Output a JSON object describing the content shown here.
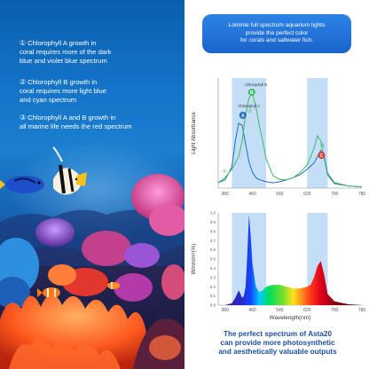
{
  "left_panel": {
    "items": [
      {
        "num": "①",
        "text_lines": [
          "Chlorophyll A growth in",
          "coral requires more of the dark",
          "blue and violet blue spectrum"
        ]
      },
      {
        "num": "②",
        "text_lines": [
          "Chlorophyll B growth in",
          "coral requires more light blue",
          "and cyan spectrum"
        ]
      },
      {
        "num": "③",
        "text_lines": [
          "Chlorophyll A and B growth in",
          "all marine life needs the red spectrum"
        ]
      }
    ]
  },
  "right_panel": {
    "header_lines": [
      "Lominie full spectrum aquarium lights",
      "provide the perfect color",
      "for corals and saltwater fish."
    ],
    "caption_lines": [
      "The perfect spectrum of Asta20",
      "can provide more photosynthetic",
      "and aesthetically valuable outputs"
    ]
  },
  "chart_data": [
    {
      "type": "line",
      "ylabel": "Light Absorbance",
      "x_ticks": [
        "380",
        "460",
        "540",
        "620",
        "700",
        "780"
      ],
      "xlim": [
        360,
        780
      ],
      "highlight_bands_nm": [
        [
          400,
          500
        ],
        [
          620,
          680
        ]
      ],
      "series": [
        {
          "name": "Chlorophyll A",
          "color": "#1f6fbf",
          "x": [
            360,
            380,
            400,
            410,
            420,
            430,
            440,
            450,
            460,
            470,
            480,
            500,
            520,
            540,
            560,
            580,
            600,
            620,
            640,
            650,
            660,
            670,
            680,
            700,
            740,
            780
          ],
          "y": [
            0.05,
            0.08,
            0.2,
            0.45,
            0.62,
            0.6,
            0.42,
            0.25,
            0.15,
            0.1,
            0.08,
            0.06,
            0.05,
            0.06,
            0.08,
            0.1,
            0.13,
            0.18,
            0.24,
            0.3,
            0.36,
            0.3,
            0.14,
            0.05,
            0.02,
            0.01
          ]
        },
        {
          "name": "Chlorophyll B",
          "color": "#3fb867",
          "x": [
            360,
            380,
            400,
            420,
            430,
            440,
            450,
            460,
            470,
            480,
            490,
            500,
            520,
            540,
            560,
            580,
            600,
            620,
            640,
            650,
            660,
            670,
            680,
            700,
            740,
            780
          ],
          "y": [
            0.05,
            0.1,
            0.18,
            0.3,
            0.45,
            0.7,
            0.86,
            0.9,
            0.78,
            0.6,
            0.45,
            0.28,
            0.12,
            0.08,
            0.08,
            0.1,
            0.15,
            0.22,
            0.38,
            0.5,
            0.45,
            0.28,
            0.12,
            0.04,
            0.02,
            0.01
          ]
        }
      ],
      "annotations": [
        {
          "label": "Chlorophyll A",
          "marker": "A",
          "color": "#1f6fbf"
        },
        {
          "label": "Chlorophyll B",
          "marker": "B",
          "color": "#3fb867"
        },
        {
          "marker": "C",
          "color": "#d93a3a"
        },
        {
          "marker": "①"
        },
        {
          "marker": "②"
        },
        {
          "marker": "③"
        }
      ]
    },
    {
      "type": "area",
      "ylabel": "W/nm/m²(%)",
      "xlabel": "Wavelength(nm)",
      "x_ticks": [
        "380",
        "460",
        "540",
        "620",
        "700",
        "780"
      ],
      "xlim": [
        360,
        780
      ],
      "y_ticks": [
        "0.0",
        "0.1",
        "0.2",
        "0.3",
        "0.4",
        "0.5",
        "0.6",
        "0.7",
        "0.8",
        "0.9",
        "1.0"
      ],
      "ylim": [
        0,
        1.0
      ],
      "highlight_bands_nm": [
        [
          400,
          500
        ],
        [
          620,
          680
        ]
      ],
      "series": [
        {
          "name": "Asta20 spectrum",
          "x": [
            380,
            400,
            410,
            420,
            425,
            430,
            435,
            440,
            445,
            450,
            455,
            460,
            470,
            480,
            490,
            500,
            520,
            540,
            560,
            580,
            600,
            620,
            630,
            640,
            650,
            660,
            670,
            680,
            700,
            740,
            780
          ],
          "y": [
            0.0,
            0.02,
            0.08,
            0.16,
            0.12,
            0.08,
            0.1,
            0.2,
            0.55,
            0.98,
            0.75,
            0.45,
            0.2,
            0.14,
            0.16,
            0.2,
            0.22,
            0.22,
            0.2,
            0.18,
            0.18,
            0.2,
            0.22,
            0.3,
            0.42,
            0.48,
            0.32,
            0.12,
            0.04,
            0.01,
            0.0
          ]
        }
      ]
    }
  ]
}
